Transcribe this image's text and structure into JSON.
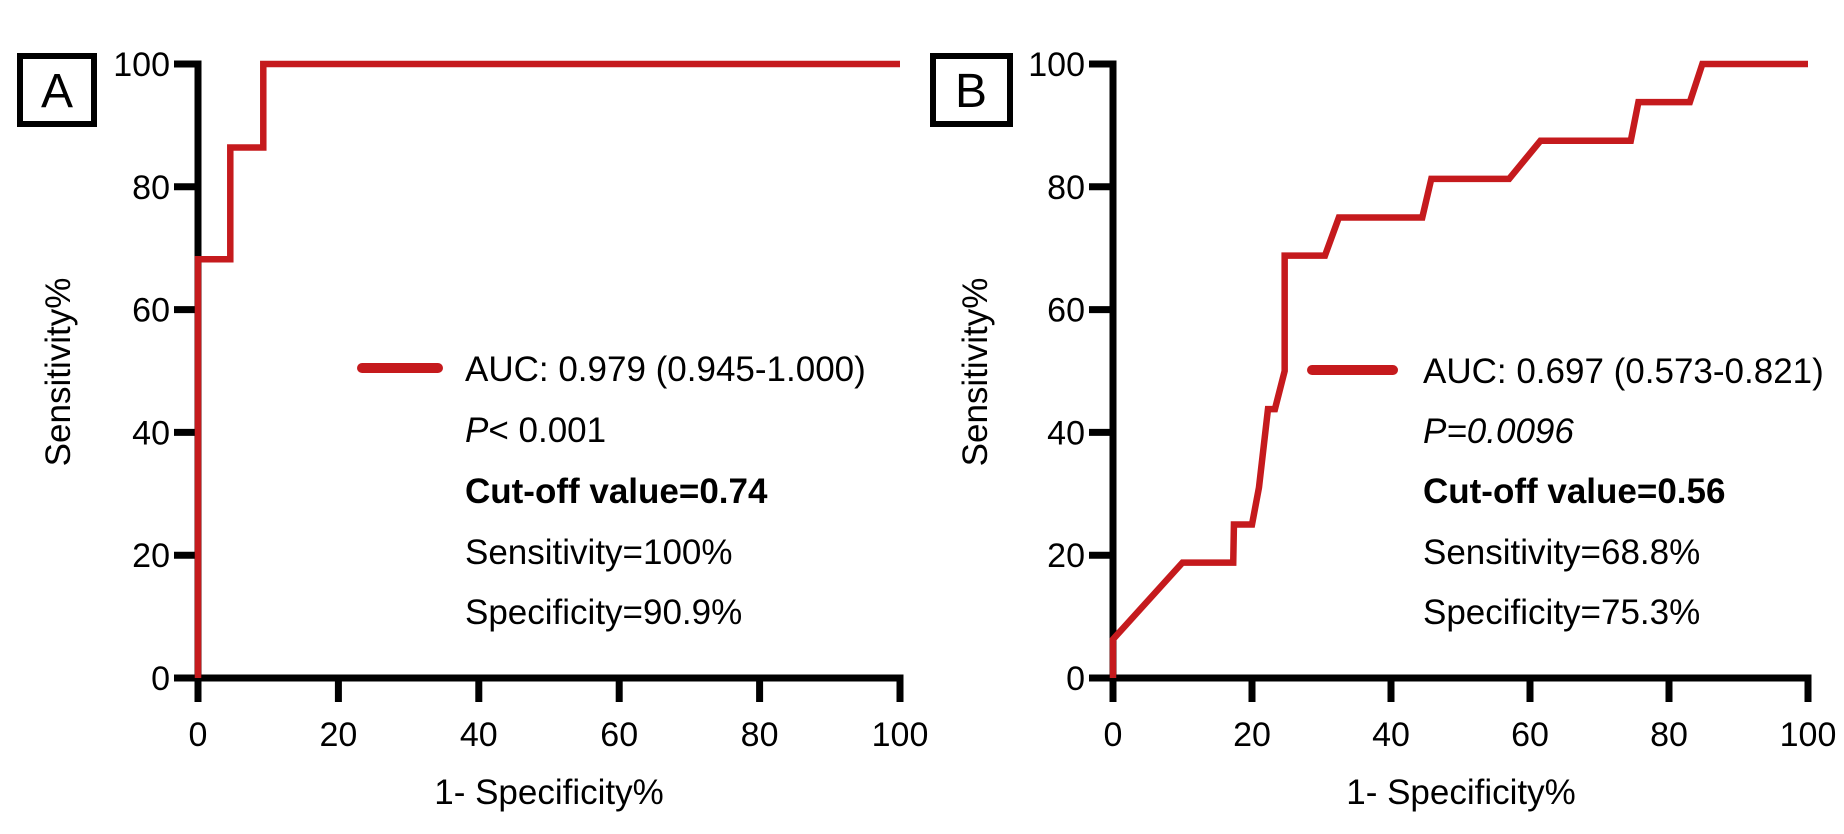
{
  "colors": {
    "curve_red": "#c51a1d",
    "axis_black": "#000000",
    "background": "#ffffff"
  },
  "chart_data": [
    {
      "type": "line",
      "panel_label": "A",
      "xlabel": "1- Specificity%",
      "ylabel": "Sensitivity%",
      "xlim": [
        0,
        100
      ],
      "ylim": [
        0,
        100
      ],
      "x_ticks": [
        0,
        20,
        40,
        60,
        80,
        100
      ],
      "y_ticks": [
        0,
        20,
        40,
        60,
        80,
        100
      ],
      "grid": false,
      "legend_position": "center-right-inside",
      "series": [
        {
          "name": "ROC curve",
          "color": "#c51a1d",
          "points": [
            [
              0,
              0
            ],
            [
              0,
              68.2
            ],
            [
              4.6,
              68.2
            ],
            [
              4.6,
              86.4
            ],
            [
              9.3,
              86.4
            ],
            [
              9.3,
              100
            ],
            [
              100,
              100
            ]
          ]
        }
      ],
      "annotations": {
        "auc": "AUC: 0.979 (0.945-1.000)",
        "p_italic": "P",
        "p_rest": "< 0.001",
        "cutoff": "Cut-off value=0.74",
        "sensitivity": "Sensitivity=100%",
        "specificity": "Specificity=90.9%"
      },
      "stats": {
        "auc": 0.979,
        "ci_low": 0.945,
        "ci_high": 1.0,
        "p_value": "<0.001",
        "cutoff_value": 0.74,
        "sensitivity_pct": 100,
        "specificity_pct": 90.9
      }
    },
    {
      "type": "line",
      "panel_label": "B",
      "xlabel": "1- Specificity%",
      "ylabel": "Sensitivity%",
      "xlim": [
        0,
        100
      ],
      "ylim": [
        0,
        100
      ],
      "x_ticks": [
        0,
        20,
        40,
        60,
        80,
        100
      ],
      "y_ticks": [
        0,
        20,
        40,
        60,
        80,
        100
      ],
      "grid": false,
      "legend_position": "center-right-inside",
      "series": [
        {
          "name": "ROC curve",
          "color": "#c51a1d",
          "points": [
            [
              0,
              0
            ],
            [
              0,
              6.3
            ],
            [
              10,
              18.8
            ],
            [
              17.3,
              18.8
            ],
            [
              17.4,
              25
            ],
            [
              20,
              25
            ],
            [
              21,
              31
            ],
            [
              22.3,
              43.8
            ],
            [
              23.3,
              43.8
            ],
            [
              24.7,
              50
            ],
            [
              24.7,
              68.8
            ],
            [
              30.5,
              68.8
            ],
            [
              32.5,
              75
            ],
            [
              44.5,
              75
            ],
            [
              45.8,
              81.3
            ],
            [
              57,
              81.3
            ],
            [
              61.5,
              87.5
            ],
            [
              74.5,
              87.5
            ],
            [
              75.6,
              93.8
            ],
            [
              83,
              93.8
            ],
            [
              84.8,
              100
            ],
            [
              100,
              100
            ]
          ]
        }
      ],
      "annotations": {
        "auc": "AUC: 0.697 (0.573-0.821)",
        "p_italic": "P=0.0096",
        "p_rest": "",
        "cutoff": "Cut-off value=0.56",
        "sensitivity": "Sensitivity=68.8%",
        "specificity": "Specificity=75.3%"
      },
      "stats": {
        "auc": 0.697,
        "ci_low": 0.573,
        "ci_high": 0.821,
        "p_value": "0.0096",
        "cutoff_value": 0.56,
        "sensitivity_pct": 68.8,
        "specificity_pct": 75.3
      }
    }
  ]
}
